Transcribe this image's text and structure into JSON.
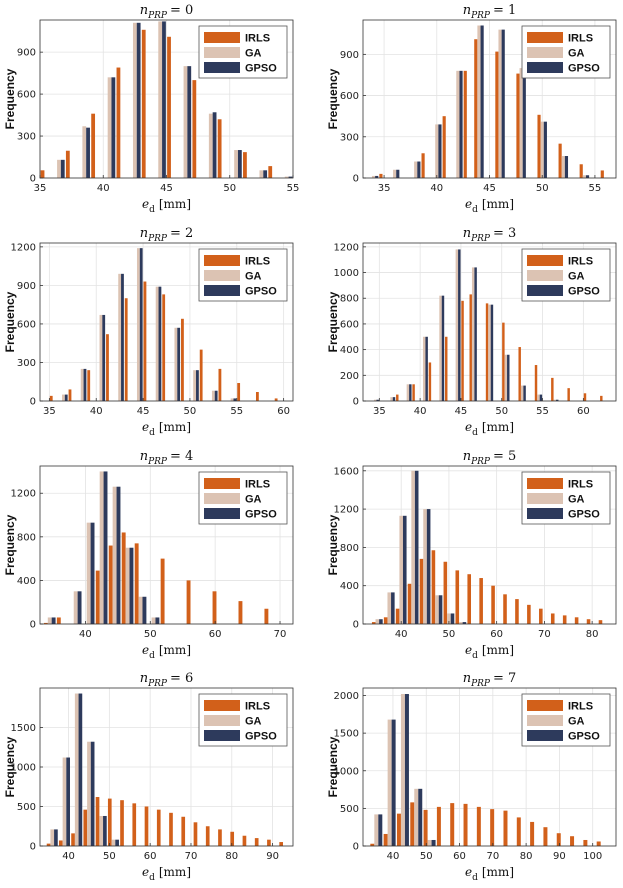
{
  "colors": {
    "IRLS": "#d2601a",
    "GA": "#dcc3b3",
    "GPSO": "#2d3a5c"
  },
  "chart_data": [
    {
      "type": "bar",
      "title_var": "n",
      "title_sub": "PRP",
      "title_val": "= 0",
      "ylabel": "Frequency",
      "xlabel_var": "e",
      "xlabel_sub": "d",
      "xlabel_unit": "[mm]",
      "xlim": [
        35,
        55
      ],
      "ylim": [
        0,
        1130
      ],
      "xticks": [
        35,
        40,
        45,
        50,
        55
      ],
      "yticks": [
        0,
        300,
        600,
        900
      ],
      "legend": [
        "IRLS",
        "GA",
        "GPSO"
      ],
      "legend_position": "top-right",
      "x": [
        35.5,
        36.5,
        37.5,
        38.5,
        39.5,
        40.5,
        41.5,
        42.5,
        43.5,
        44.5,
        45.5,
        46.5,
        47.5,
        48.5,
        49.5,
        50.5,
        51.5,
        52.5,
        53.5,
        54.5
      ],
      "series": [
        {
          "name": "IRLS",
          "values": [
            55,
            0,
            195,
            0,
            460,
            0,
            790,
            0,
            1060,
            0,
            1010,
            0,
            700,
            0,
            420,
            0,
            185,
            0,
            85,
            0
          ]
        },
        {
          "name": "GA",
          "values": [
            0,
            130,
            0,
            370,
            0,
            720,
            0,
            1110,
            0,
            1120,
            0,
            800,
            0,
            460,
            0,
            200,
            0,
            55,
            0,
            10
          ]
        },
        {
          "name": "GPSO",
          "values": [
            0,
            130,
            0,
            360,
            0,
            720,
            0,
            1110,
            0,
            1120,
            0,
            800,
            0,
            470,
            0,
            200,
            0,
            55,
            0,
            10
          ]
        }
      ]
    },
    {
      "type": "bar",
      "title_var": "n",
      "title_sub": "PRP",
      "title_val": "= 1",
      "ylabel": "Frequency",
      "xlabel_var": "e",
      "xlabel_sub": "d",
      "xlabel_unit": "[mm]",
      "xlim": [
        33,
        57
      ],
      "ylim": [
        0,
        1150
      ],
      "xticks": [
        35,
        40,
        45,
        50,
        55
      ],
      "yticks": [
        0,
        300,
        600,
        900
      ],
      "legend": [
        "IRLS",
        "GA",
        "GPSO"
      ],
      "legend_position": "top-right",
      "x": [
        34,
        35,
        36,
        37,
        38,
        39,
        40,
        41,
        42,
        43,
        44,
        45,
        46,
        47,
        48,
        49,
        50,
        51,
        52,
        53,
        54,
        55,
        56
      ],
      "series": [
        {
          "name": "IRLS",
          "values": [
            0,
            30,
            0,
            0,
            0,
            180,
            0,
            450,
            0,
            780,
            1010,
            0,
            920,
            0,
            760,
            0,
            460,
            0,
            250,
            0,
            100,
            0,
            55
          ]
        },
        {
          "name": "GA",
          "values": [
            15,
            0,
            60,
            0,
            120,
            0,
            390,
            0,
            780,
            0,
            1110,
            0,
            1080,
            0,
            800,
            0,
            410,
            0,
            160,
            0,
            20,
            0,
            0
          ]
        },
        {
          "name": "GPSO",
          "values": [
            15,
            0,
            60,
            0,
            120,
            0,
            390,
            0,
            780,
            0,
            1110,
            0,
            1080,
            0,
            800,
            0,
            410,
            0,
            160,
            0,
            20,
            0,
            0
          ]
        }
      ]
    },
    {
      "type": "bar",
      "title_var": "n",
      "title_sub": "PRP",
      "title_val": "= 2",
      "ylabel": "Frequency",
      "xlabel_var": "e",
      "xlabel_sub": "d",
      "xlabel_unit": "[mm]",
      "xlim": [
        34,
        61
      ],
      "ylim": [
        0,
        1230
      ],
      "xticks": [
        35,
        40,
        45,
        50,
        55,
        60
      ],
      "yticks": [
        0,
        300,
        600,
        900,
        1200
      ],
      "legend": [
        "IRLS",
        "GA",
        "GPSO"
      ],
      "legend_position": "top-right",
      "x": [
        35.5,
        36.5,
        37.5,
        38.5,
        39.5,
        40.5,
        41.5,
        42.5,
        43.5,
        44.5,
        45.5,
        46.5,
        47.5,
        48.5,
        49.5,
        50.5,
        51.5,
        52.5,
        53.5,
        54.5,
        55.5,
        56.5,
        57.5,
        58.5,
        59.5
      ],
      "series": [
        {
          "name": "IRLS",
          "values": [
            40,
            0,
            90,
            0,
            240,
            0,
            520,
            0,
            800,
            0,
            930,
            0,
            830,
            0,
            640,
            0,
            400,
            0,
            250,
            0,
            140,
            0,
            70,
            0,
            20
          ]
        },
        {
          "name": "GA",
          "values": [
            0,
            50,
            0,
            250,
            0,
            670,
            0,
            990,
            0,
            1190,
            0,
            890,
            0,
            570,
            0,
            240,
            0,
            80,
            0,
            20,
            0,
            0,
            0,
            0,
            0
          ]
        },
        {
          "name": "GPSO",
          "values": [
            0,
            50,
            0,
            250,
            0,
            670,
            0,
            990,
            0,
            1190,
            0,
            890,
            0,
            570,
            0,
            240,
            0,
            80,
            0,
            20,
            0,
            0,
            0,
            0,
            0
          ]
        }
      ]
    },
    {
      "type": "bar",
      "title_var": "n",
      "title_sub": "PRP",
      "title_val": "= 3",
      "ylabel": "Frequency",
      "xlabel_var": "e",
      "xlabel_sub": "d",
      "xlabel_unit": "[mm]",
      "xlim": [
        33,
        64
      ],
      "ylim": [
        0,
        1230
      ],
      "xticks": [
        35,
        40,
        45,
        50,
        55,
        60
      ],
      "yticks": [
        0,
        200,
        400,
        600,
        800,
        1000,
        1200
      ],
      "legend": [
        "IRLS",
        "GA",
        "GPSO"
      ],
      "legend_position": "top-right",
      "x": [
        34.5,
        35.5,
        36.5,
        37.5,
        38.5,
        39.5,
        40.5,
        41.5,
        42.5,
        43.5,
        44.5,
        45.5,
        46.5,
        47.5,
        48.5,
        49.5,
        50.5,
        51.5,
        52.5,
        53.5,
        54.5,
        55.5,
        56.5,
        57.5,
        58.5,
        59.5,
        60.5,
        61.5,
        62.5
      ],
      "series": [
        {
          "name": "IRLS",
          "values": [
            0,
            0,
            0,
            50,
            0,
            130,
            0,
            300,
            0,
            500,
            0,
            780,
            830,
            0,
            760,
            0,
            610,
            0,
            420,
            0,
            280,
            0,
            180,
            0,
            100,
            0,
            60,
            0,
            40
          ]
        },
        {
          "name": "GA",
          "values": [
            10,
            0,
            30,
            0,
            130,
            0,
            500,
            0,
            820,
            0,
            1180,
            0,
            1040,
            0,
            750,
            0,
            360,
            0,
            120,
            0,
            50,
            0,
            10,
            0,
            0,
            0,
            0,
            0,
            0
          ]
        },
        {
          "name": "GPSO",
          "values": [
            10,
            0,
            30,
            0,
            130,
            0,
            500,
            0,
            820,
            0,
            1180,
            0,
            1040,
            0,
            750,
            0,
            360,
            0,
            120,
            0,
            50,
            0,
            10,
            0,
            0,
            0,
            0,
            0,
            0
          ]
        }
      ]
    },
    {
      "type": "bar",
      "title_var": "n",
      "title_sub": "PRP",
      "title_val": "= 4",
      "ylabel": "Frequency",
      "xlabel_var": "e",
      "xlabel_sub": "d",
      "xlabel_unit": "[mm]",
      "xlim": [
        33,
        72
      ],
      "ylim": [
        0,
        1450
      ],
      "xticks": [
        40,
        50,
        60,
        70
      ],
      "yticks": [
        0,
        400,
        800,
        1200
      ],
      "legend": [
        "IRLS",
        "GA",
        "GPSO"
      ],
      "legend_position": "top-right",
      "x": [
        34.5,
        36.5,
        38.5,
        40.5,
        42.5,
        44.5,
        46.5,
        48.5,
        50.5,
        52.5,
        54.5,
        56.5,
        58.5,
        60.5,
        62.5,
        64.5,
        66.5,
        68.5,
        70.5
      ],
      "series": [
        {
          "name": "IRLS",
          "values": [
            10,
            60,
            0,
            0,
            490,
            720,
            840,
            740,
            0,
            600,
            0,
            400,
            0,
            300,
            0,
            210,
            0,
            140,
            0
          ]
        },
        {
          "name": "GA",
          "values": [
            60,
            0,
            300,
            930,
            1400,
            1260,
            700,
            250,
            60,
            0,
            0,
            0,
            0,
            0,
            0,
            0,
            0,
            0,
            0
          ]
        },
        {
          "name": "GPSO",
          "values": [
            60,
            0,
            300,
            930,
            1400,
            1260,
            700,
            250,
            60,
            0,
            0,
            0,
            0,
            0,
            0,
            0,
            0,
            0,
            0
          ]
        }
      ]
    },
    {
      "type": "bar",
      "title_var": "n",
      "title_sub": "PRP",
      "title_val": "= 5",
      "ylabel": "Frequency",
      "xlabel_var": "e",
      "xlabel_sub": "d",
      "xlabel_unit": "[mm]",
      "xlim": [
        32,
        85
      ],
      "ylim": [
        0,
        1650
      ],
      "xticks": [
        40,
        50,
        60,
        70,
        80
      ],
      "yticks": [
        0,
        400,
        800,
        1200,
        1600
      ],
      "legend": [
        "IRLS",
        "GA",
        "GPSO"
      ],
      "legend_position": "top-right",
      "x": [
        35,
        37.5,
        40,
        42.5,
        45,
        47.5,
        50,
        52.5,
        55,
        57.5,
        60,
        62.5,
        65,
        67.5,
        70,
        72.5,
        75,
        77.5,
        80,
        82.5
      ],
      "series": [
        {
          "name": "IRLS",
          "values": [
            20,
            70,
            160,
            420,
            680,
            770,
            650,
            560,
            520,
            480,
            400,
            310,
            260,
            200,
            160,
            110,
            90,
            70,
            50,
            40
          ]
        },
        {
          "name": "GA",
          "values": [
            50,
            330,
            1130,
            1600,
            1200,
            300,
            110,
            20,
            0,
            0,
            0,
            0,
            0,
            0,
            0,
            0,
            0,
            0,
            0,
            0
          ]
        },
        {
          "name": "GPSO",
          "values": [
            50,
            330,
            1130,
            1600,
            1200,
            300,
            110,
            20,
            0,
            0,
            0,
            0,
            0,
            0,
            0,
            0,
            0,
            0,
            0,
            0
          ]
        }
      ]
    },
    {
      "type": "bar",
      "title_var": "n",
      "title_sub": "PRP",
      "title_val": "= 6",
      "ylabel": "Frequency",
      "xlabel_var": "e",
      "xlabel_sub": "d",
      "xlabel_unit": "[mm]",
      "xlim": [
        33,
        95
      ],
      "ylim": [
        0,
        2000
      ],
      "xticks": [
        40,
        50,
        60,
        70,
        80,
        90
      ],
      "yticks": [
        0,
        500,
        1000,
        1500
      ],
      "legend": [
        "IRLS",
        "GA",
        "GPSO"
      ],
      "legend_position": "top-right",
      "x": [
        36,
        39,
        42,
        45,
        48,
        51,
        54,
        57,
        60,
        63,
        66,
        69,
        72,
        75,
        78,
        81,
        84,
        87,
        90,
        93
      ],
      "series": [
        {
          "name": "IRLS",
          "values": [
            30,
            70,
            160,
            460,
            620,
            600,
            580,
            540,
            500,
            460,
            420,
            370,
            300,
            250,
            210,
            180,
            130,
            100,
            80,
            50
          ]
        },
        {
          "name": "GA",
          "values": [
            210,
            1120,
            1930,
            1320,
            380,
            80,
            0,
            0,
            0,
            0,
            0,
            0,
            0,
            0,
            0,
            0,
            0,
            0,
            0,
            0
          ]
        },
        {
          "name": "GPSO",
          "values": [
            210,
            1120,
            1930,
            1320,
            380,
            80,
            0,
            0,
            0,
            0,
            0,
            0,
            0,
            0,
            0,
            0,
            0,
            0,
            0,
            0
          ]
        }
      ]
    },
    {
      "type": "bar",
      "title_var": "n",
      "title_sub": "PRP",
      "title_val": "= 7",
      "ylabel": "Frequency",
      "xlabel_var": "e",
      "xlabel_sub": "d",
      "xlabel_unit": "[mm]",
      "xlim": [
        31,
        107
      ],
      "ylim": [
        0,
        2100
      ],
      "xticks": [
        40,
        50,
        60,
        70,
        80,
        90,
        100
      ],
      "yticks": [
        0,
        500,
        1000,
        1500,
        2000
      ],
      "legend": [
        "IRLS",
        "GA",
        "GPSO"
      ],
      "legend_position": "top-right",
      "x": [
        35,
        39,
        43,
        47,
        51,
        55,
        59,
        63,
        67,
        71,
        75,
        79,
        83,
        87,
        91,
        95,
        99,
        103
      ],
      "series": [
        {
          "name": "IRLS",
          "values": [
            30,
            160,
            430,
            580,
            480,
            520,
            570,
            560,
            520,
            490,
            470,
            380,
            320,
            250,
            170,
            130,
            80,
            60
          ]
        },
        {
          "name": "GA",
          "values": [
            420,
            1680,
            2020,
            760,
            80,
            0,
            0,
            0,
            0,
            0,
            0,
            0,
            0,
            0,
            0,
            0,
            0,
            0
          ]
        },
        {
          "name": "GPSO",
          "values": [
            420,
            1680,
            2020,
            760,
            80,
            0,
            0,
            0,
            0,
            0,
            0,
            0,
            0,
            0,
            0,
            0,
            0,
            0
          ]
        }
      ]
    }
  ]
}
